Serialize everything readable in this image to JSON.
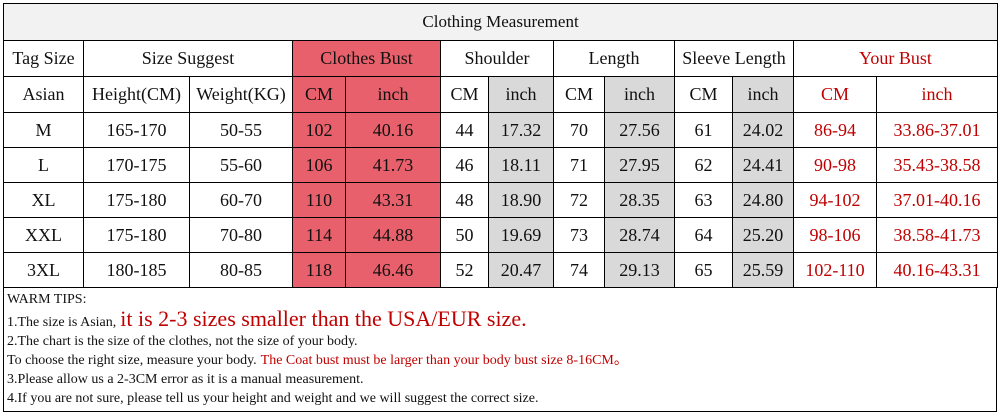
{
  "title": "Clothing Measurement",
  "headers": [
    "Tag Size",
    "Size Suggest",
    "Clothes Bust",
    "Shoulder",
    "Length",
    "Sleeve Length",
    "Your Bust"
  ],
  "subheaders": [
    "Asian",
    "Height(CM)",
    "Weight(KG)",
    "CM",
    "inch",
    "CM",
    "inch",
    "CM",
    "inch",
    "CM",
    "inch",
    "CM",
    "inch"
  ],
  "rows": [
    [
      "M",
      "165-170",
      "50-55",
      "102",
      "40.16",
      "44",
      "17.32",
      "70",
      "27.56",
      "61",
      "24.02",
      "86-94",
      "33.86-37.01"
    ],
    [
      "L",
      "170-175",
      "55-60",
      "106",
      "41.73",
      "46",
      "18.11",
      "71",
      "27.95",
      "62",
      "24.41",
      "90-98",
      "35.43-38.58"
    ],
    [
      "XL",
      "175-180",
      "60-70",
      "110",
      "43.31",
      "48",
      "18.90",
      "72",
      "28.35",
      "63",
      "24.80",
      "94-102",
      "37.01-40.16"
    ],
    [
      "XXL",
      "175-180",
      "70-80",
      "114",
      "44.88",
      "50",
      "19.69",
      "73",
      "28.74",
      "64",
      "25.20",
      "98-106",
      "38.58-41.73"
    ],
    [
      "3XL",
      "180-185",
      "80-85",
      "118",
      "46.46",
      "52",
      "20.47",
      "74",
      "29.13",
      "65",
      "25.59",
      "102-110",
      "40.16-43.31"
    ]
  ],
  "tips": {
    "heading": "WARM TIPS:",
    "lines": [
      [
        "1.The size is Asian,",
        "it is 2-3 sizes smaller than the USA/EUR size."
      ],
      [
        "2.The chart is the size of the clothes, not the size of your body."
      ],
      [
        "To choose the right size, measure your body.",
        "The Coat bust must be larger than your body bust size 8-16CM。"
      ],
      [
        "3.Please allow us a 2-3CM error as it is a manual measurement."
      ],
      [
        "4.If you are not sure, please tell us your height and weight and we will suggest the correct size."
      ]
    ]
  }
}
